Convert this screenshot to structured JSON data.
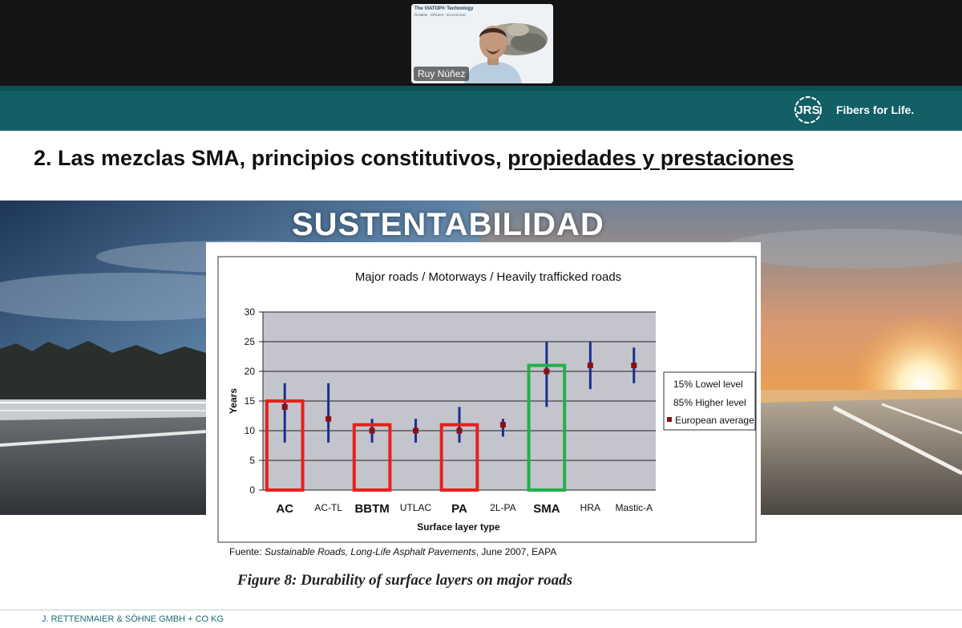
{
  "meeting": {
    "participant_name": "Ruy Núñez",
    "shared_slide_text_1": "The VIATOP® Technology",
    "shared_slide_text_2": "Reliable · Efficient · Economical"
  },
  "brand": {
    "tagline": "Fibers for Life.",
    "logo_text": "JRS",
    "header_color": "#125f66"
  },
  "slide": {
    "title_plain": "2. Las mezclas SMA, principios constitutivos, ",
    "title_underlined": "propiedades y prestaciones",
    "banner_text": "SUSTENTABILIDAD",
    "source_prefix": "Fuente: ",
    "source_title": "Sustainable Roads, Long-Life Asphalt Pavements",
    "source_suffix": ", June 2007, EAPA",
    "figure_caption": "Figure 8: Durability of surface layers on major roads",
    "footer": "J. RETTENMAIER & SÖHNE GMBH + CO KG"
  },
  "chart_data": {
    "type": "range",
    "title": "Major roads / Motorways / Heavily trafficked roads",
    "xlabel": "Surface layer type",
    "ylabel": "Years",
    "ylim": [
      0,
      30
    ],
    "yticks": [
      0,
      5,
      10,
      15,
      20,
      25,
      30
    ],
    "grid": true,
    "legend": [
      "15% Lowel level",
      "85% Higher level",
      "European average"
    ],
    "legend_position": "right",
    "categories": [
      "AC",
      "AC-TL",
      "BBTM",
      "UTLAC",
      "PA",
      "2L-PA",
      "SMA",
      "HRA",
      "Mastic-A"
    ],
    "emphasized_categories": [
      "AC",
      "BBTM",
      "PA",
      "SMA"
    ],
    "low": [
      8,
      8,
      8,
      8,
      8,
      9,
      14,
      17,
      18
    ],
    "high": [
      18,
      18,
      12,
      12,
      14,
      12,
      25,
      25,
      24
    ],
    "average": [
      14,
      12,
      10,
      10,
      10,
      11,
      20,
      21,
      21
    ],
    "highlight_boxes": [
      {
        "category": "AC",
        "top": 15,
        "color": "#e8201c"
      },
      {
        "category": "BBTM",
        "top": 11,
        "color": "#e8201c"
      },
      {
        "category": "PA",
        "top": 11,
        "color": "#e8201c"
      },
      {
        "category": "SMA",
        "top": 21,
        "color": "#22b04a"
      }
    ],
    "colors": {
      "range": "#1a2e8f",
      "average": "#8b1010",
      "plot_bg": "#c4c4cc"
    }
  }
}
